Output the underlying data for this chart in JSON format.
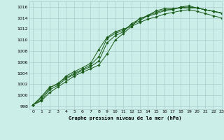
{
  "title": "Graphe pression niveau de la mer (hPa)",
  "background_color": "#cceee8",
  "grid_color": "#aacccc",
  "line_color": "#1a5c1a",
  "xlim": [
    -0.5,
    23
  ],
  "ylim": [
    997.5,
    1017
  ],
  "yticks": [
    998,
    1000,
    1002,
    1004,
    1006,
    1008,
    1010,
    1012,
    1014,
    1016
  ],
  "xticks": [
    0,
    1,
    2,
    3,
    4,
    5,
    6,
    7,
    8,
    9,
    10,
    11,
    12,
    13,
    14,
    15,
    16,
    17,
    18,
    19,
    20,
    21,
    22,
    23
  ],
  "series": [
    [
      998.3,
      999.8,
      1001.5,
      1002.0,
      1003.5,
      1004.3,
      1005.0,
      1005.8,
      1008.3,
      1010.5,
      1011.5,
      1012.0,
      1012.5,
      1014.0,
      1014.3,
      1014.8,
      1015.3,
      1015.6,
      1015.9,
      1016.0,
      1015.8,
      1015.5,
      1015.2,
      1014.9
    ],
    [
      998.3,
      999.5,
      1001.3,
      1002.2,
      1003.2,
      1004.0,
      1004.7,
      1005.5,
      1007.0,
      1010.3,
      1011.2,
      1011.8,
      1012.8,
      1013.5,
      1014.5,
      1015.3,
      1015.7,
      1015.7,
      1015.8,
      1015.8,
      1015.8,
      1015.5,
      1015.2,
      1014.9
    ],
    [
      998.3,
      999.2,
      1001.0,
      1001.8,
      1003.0,
      1003.8,
      1004.5,
      1005.2,
      1006.2,
      1009.5,
      1010.8,
      1011.5,
      1013.0,
      1013.8,
      1014.5,
      1015.0,
      1015.5,
      1015.5,
      1016.0,
      1016.2,
      1015.8,
      1015.5,
      1015.2,
      1014.9
    ],
    [
      998.3,
      999.0,
      1000.5,
      1001.5,
      1002.5,
      1003.5,
      1004.2,
      1004.8,
      1005.5,
      1007.5,
      1010.0,
      1011.2,
      1012.5,
      1013.2,
      1013.8,
      1014.2,
      1014.7,
      1015.0,
      1015.3,
      1015.5,
      1015.2,
      1014.8,
      1014.4,
      1014.0
    ]
  ]
}
